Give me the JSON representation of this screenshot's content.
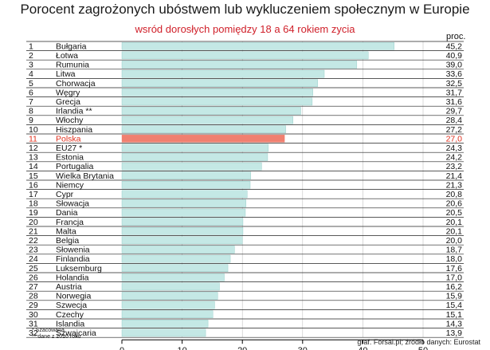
{
  "chart_data": {
    "type": "bar",
    "orientation": "horizontal",
    "title": "Porocent zagrożonych ubóstwem lub wykluczeniem społecznym w Europie",
    "subtitle": "wsród dorosłych pomiędzy 18 a 64 rokiem zycia",
    "unit_label": "proc.",
    "ranks": [
      "1",
      "2",
      "3",
      "4",
      "5",
      "6",
      "7",
      "8",
      "9",
      "10",
      "11",
      "12",
      "13",
      "14",
      "15",
      "16",
      "17",
      "18",
      "19",
      "20",
      "21",
      "22",
      "23",
      "24",
      "25",
      "26",
      "27",
      "28",
      "29",
      "30",
      "31",
      "32"
    ],
    "categories": [
      "Bułgaria",
      "Łotwa",
      "Rumunia",
      "Litwa",
      "Chorwacja",
      "Węgry",
      "Grecja",
      "Irlandia **",
      "Włochy",
      "Hiszpania",
      "Polska",
      "EU27 *",
      "Estonia",
      "Portugalia",
      "Wielka Brytania",
      "Niemcy",
      "Cypr",
      "Słowacja",
      "Dania",
      "Francja",
      "Malta",
      "Belgia",
      "Słowenia",
      "Finlandia",
      "Luksemburg",
      "Holandia",
      "Austria",
      "Norwegia",
      "Szwecja",
      "Czechy",
      "Islandia",
      "Szwajcaria"
    ],
    "values": [
      45.2,
      40.9,
      39.0,
      33.6,
      32.5,
      31.7,
      31.6,
      29.7,
      28.4,
      27.2,
      27.0,
      24.3,
      24.2,
      23.2,
      21.4,
      21.3,
      20.8,
      20.6,
      20.5,
      20.1,
      20.1,
      20.0,
      18.7,
      18.0,
      17.6,
      17.0,
      16.2,
      15.9,
      15.4,
      15.1,
      14.3,
      13.9
    ],
    "value_labels": [
      "45,2",
      "40,9",
      "39,0",
      "33,6",
      "32,5",
      "31,7",
      "31,6",
      "29,7",
      "28,4",
      "27,2",
      "27,0",
      "24,3",
      "24,2",
      "23,2",
      "21,4",
      "21,3",
      "20,8",
      "20,6",
      "20,5",
      "20,1",
      "20,1",
      "20,0",
      "18,7",
      "18,0",
      "17,6",
      "17,0",
      "16,2",
      "15,9",
      "15,4",
      "15,1",
      "14,3",
      "13,9"
    ],
    "highlight_index": 10,
    "xlim": [
      0,
      50
    ],
    "xticks": [
      "0",
      "10",
      "20",
      "30",
      "40",
      "50"
    ],
    "grid": true
  },
  "notes": [
    "* Szacowana",
    "** dane z 2010 roku"
  ],
  "source": "graf. Forsal.pl; źródło danych: Eurostat",
  "colors": {
    "bar": "#c4e8e5",
    "bar_edge": "#8fc9c4",
    "highlight_bar": "#f08070",
    "highlight_text": "#e0301e",
    "text": "#111111",
    "row_line": "#222222",
    "grid": "#c0c0c0"
  }
}
